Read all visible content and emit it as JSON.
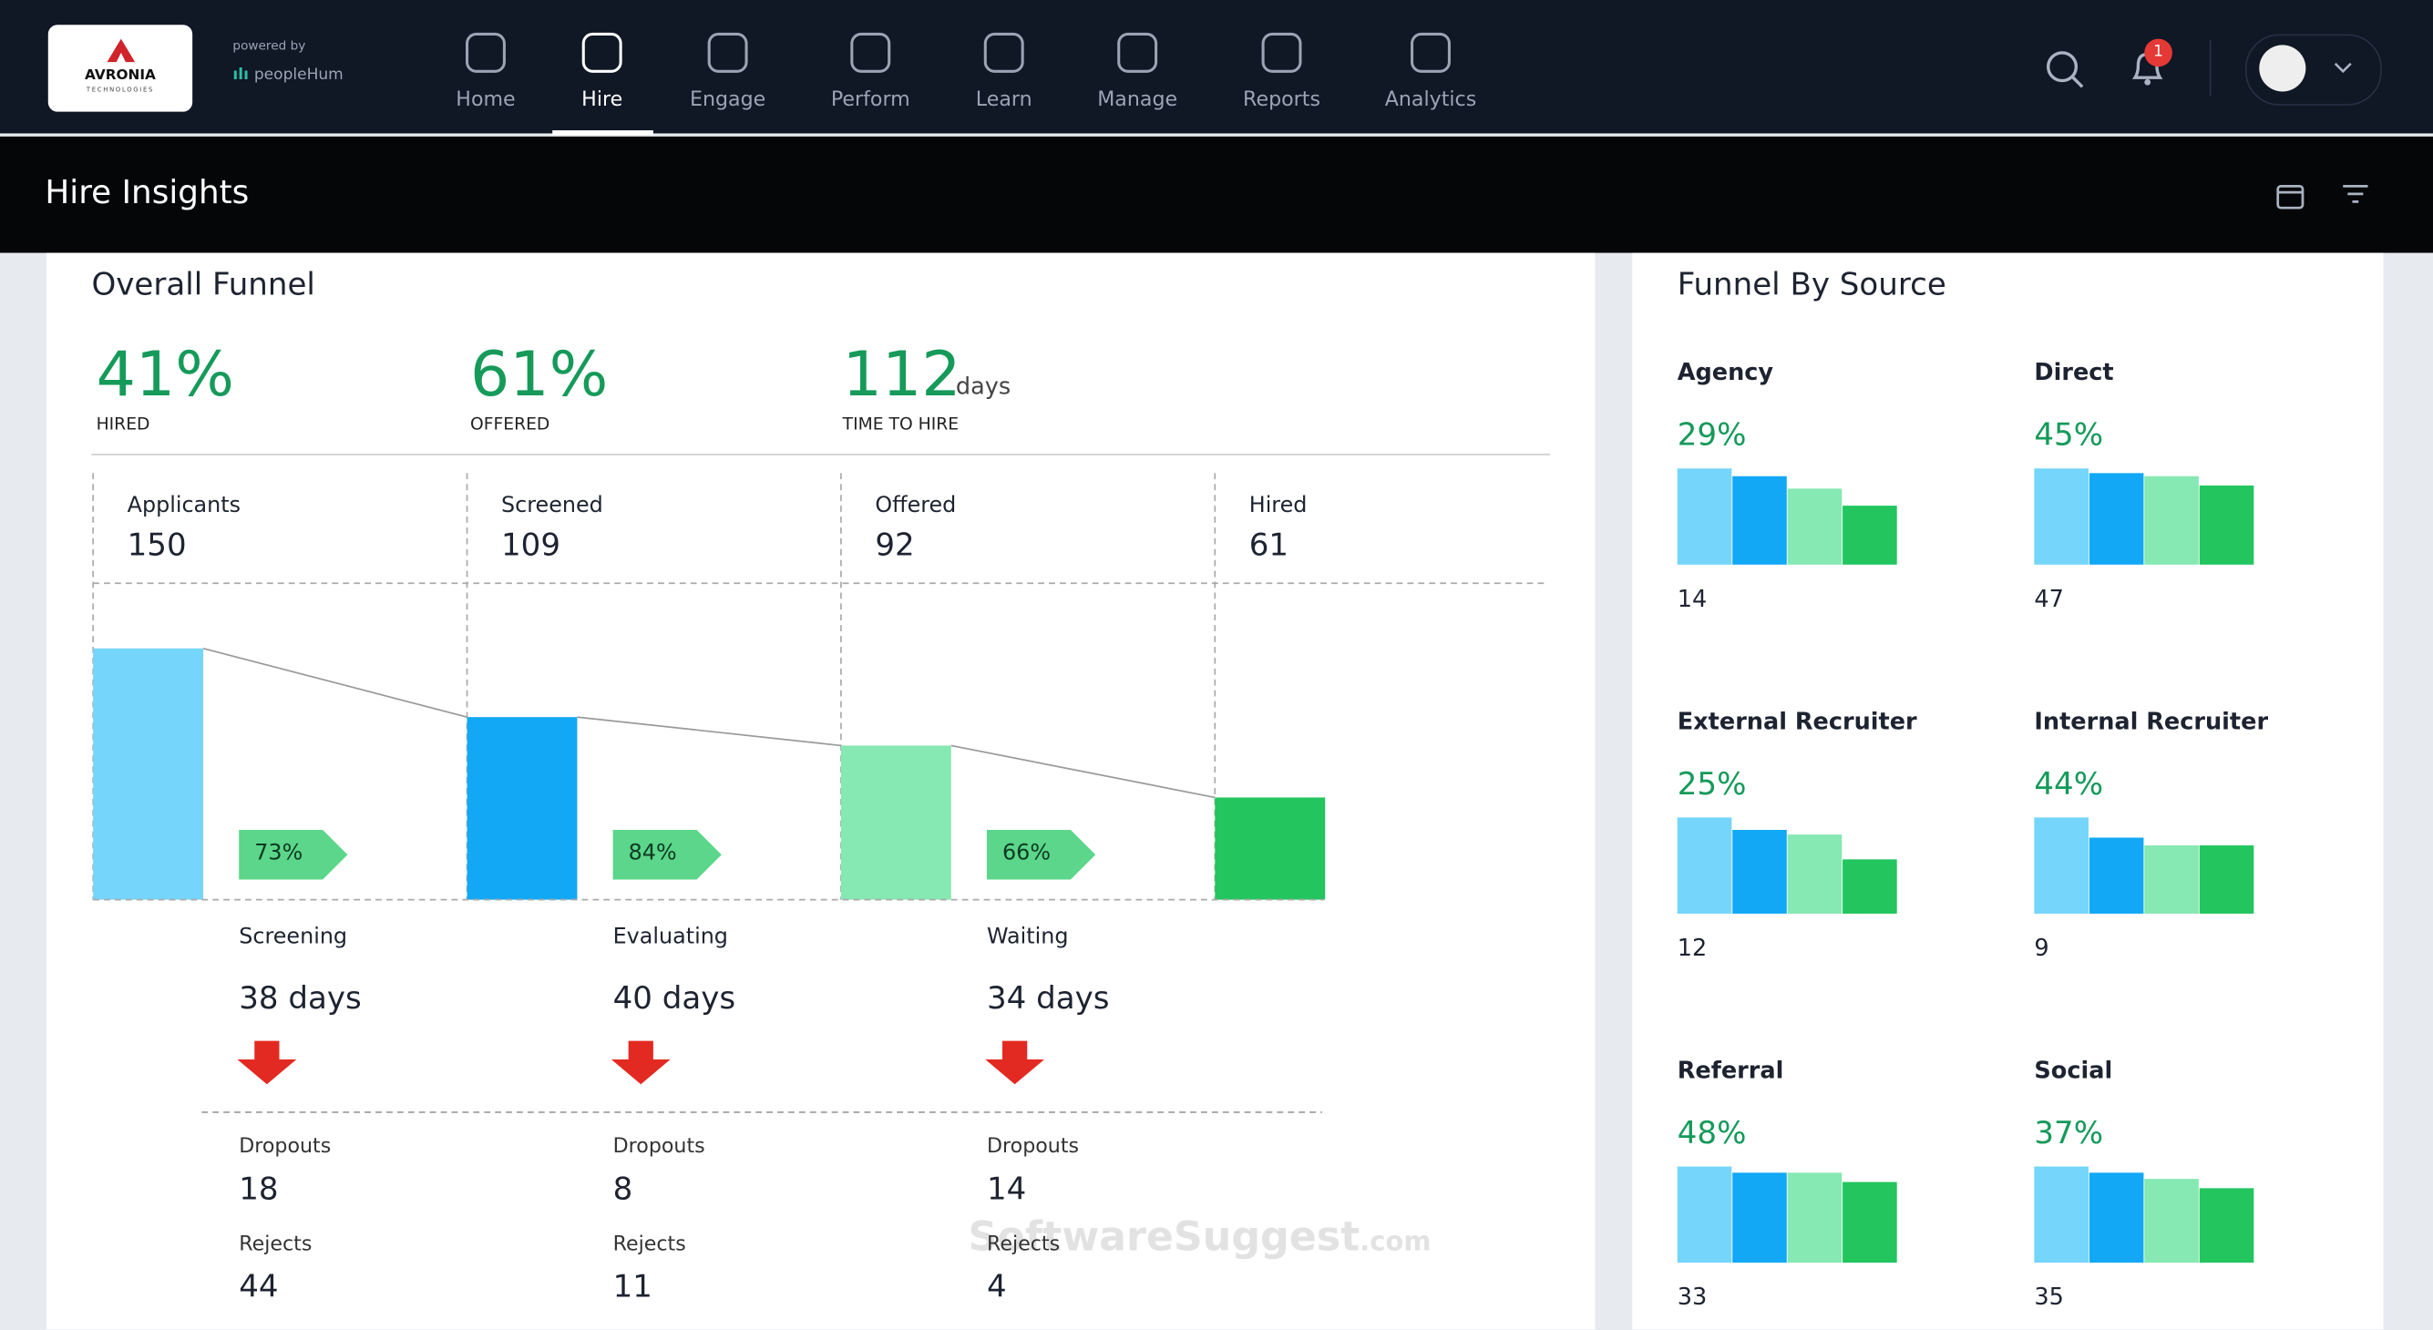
{
  "brand": {
    "logo": "AVRONIA",
    "logo_sub": "TECHNOLOGIES",
    "powered_by": "powered by",
    "product": "peopleHum"
  },
  "nav": [
    "Home",
    "Hire",
    "Engage",
    "Perform",
    "Learn",
    "Manage",
    "Reports",
    "Analytics"
  ],
  "active_nav": 1,
  "notification_count": 1,
  "header": {
    "title": "Hire Insights"
  },
  "overall_funnel": {
    "title": "Overall Funnel",
    "kpis": [
      {
        "value": "41%",
        "label": "HIRED"
      },
      {
        "value": "61%",
        "label": "OFFERED"
      },
      {
        "value": "112",
        "unit": "days",
        "label": "TIME TO HIRE"
      }
    ],
    "stages": [
      {
        "name": "Applicants",
        "count": 150,
        "color": "#75d5fb"
      },
      {
        "name": "Screened",
        "count": 109,
        "color": "#12a8f5"
      },
      {
        "name": "Offered",
        "count": 92,
        "color": "#86e8b2"
      },
      {
        "name": "Hired",
        "count": 61,
        "color": "#22c55e"
      }
    ],
    "transitions": [
      {
        "rate": "73%",
        "phase": "Screening",
        "duration": "38 days",
        "dropouts_label": "Dropouts",
        "dropouts": 18,
        "rejects_label": "Rejects",
        "rejects": 44
      },
      {
        "rate": "84%",
        "phase": "Evaluating",
        "duration": "40 days",
        "dropouts_label": "Dropouts",
        "dropouts": 8,
        "rejects_label": "Rejects",
        "rejects": 11
      },
      {
        "rate": "66%",
        "phase": "Waiting",
        "duration": "34 days",
        "dropouts_label": "Dropouts",
        "dropouts": 14,
        "rejects_label": "Rejects",
        "rejects": 4
      }
    ]
  },
  "funnel_by_source": {
    "title": "Funnel By Source",
    "sources": [
      {
        "name": "Agency",
        "rate": "29%",
        "count": 14
      },
      {
        "name": "Direct",
        "rate": "45%",
        "count": 47
      },
      {
        "name": "External Recruiter",
        "rate": "25%",
        "count": 12
      },
      {
        "name": "Internal Recruiter",
        "rate": "44%",
        "count": 9
      },
      {
        "name": "Referral",
        "rate": "48%",
        "count": 33
      },
      {
        "name": "Social",
        "rate": "37%",
        "count": 35
      }
    ]
  },
  "watermark": {
    "text": "SoftwareSuggest",
    "suffix": ".com"
  }
}
